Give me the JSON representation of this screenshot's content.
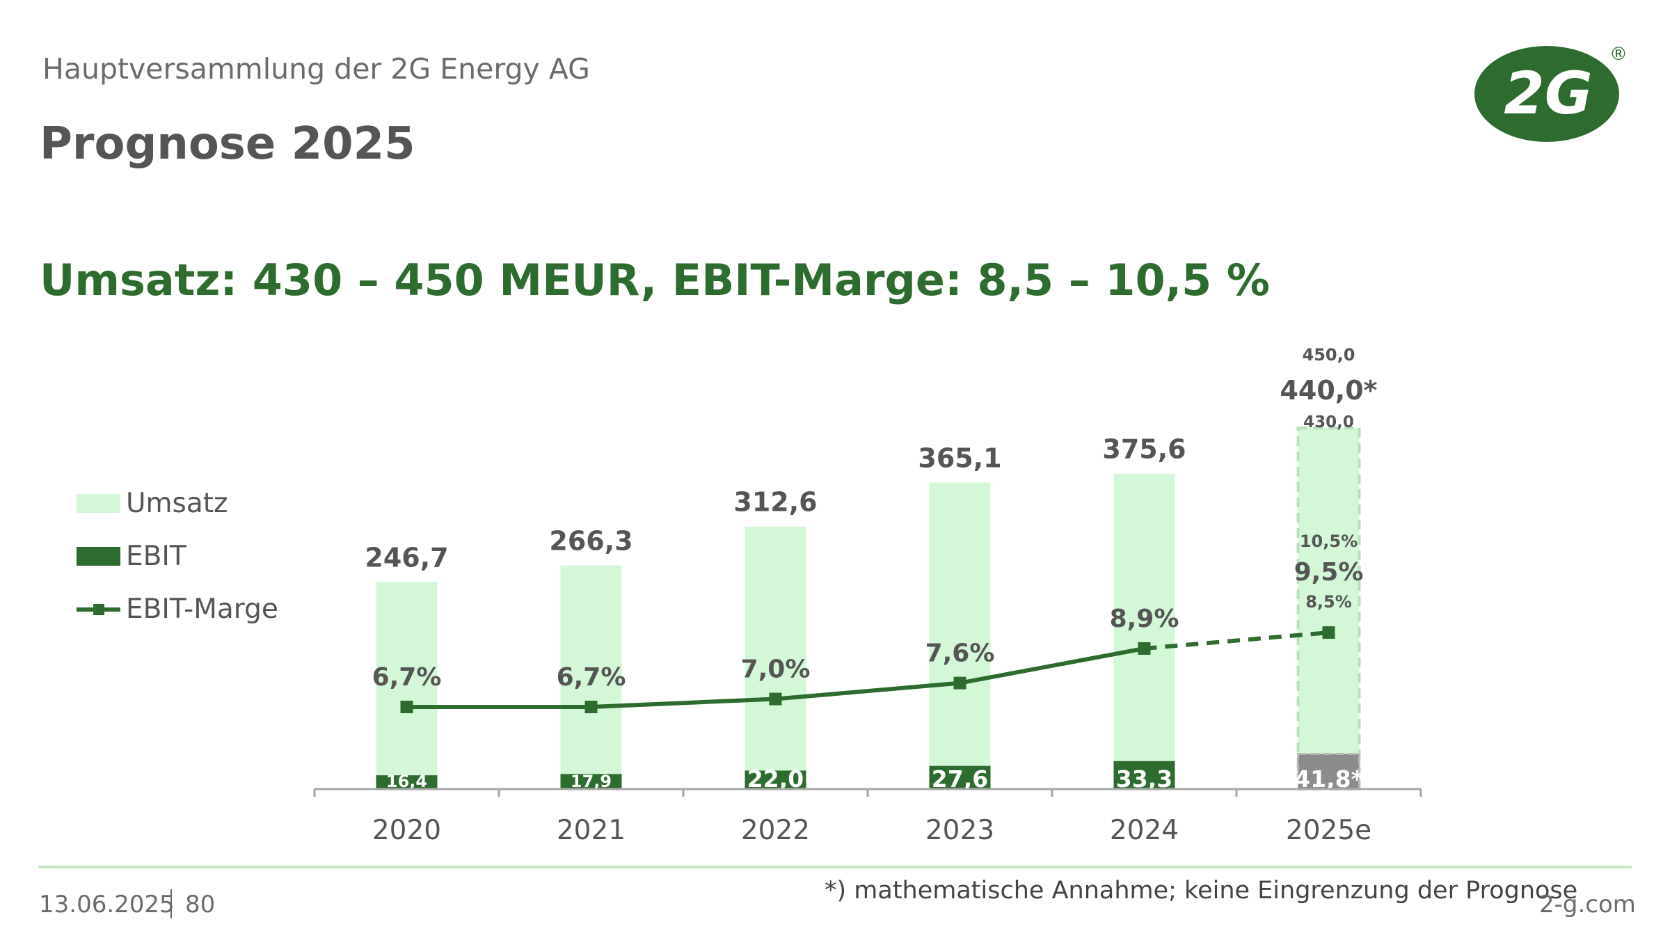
{
  "header": {
    "subtitle": "Hauptversammlung der 2G Energy AG",
    "title": "Prognose 2025",
    "headline": "Umsatz: 430 – 450 MEUR, EBIT-Marge: 8,5 – 10,5 %"
  },
  "logo": {
    "text": "2G",
    "registered": "®",
    "color": "#2e6b2e"
  },
  "legend": {
    "items": [
      {
        "label": "Umsatz",
        "color": "#d4f7d8"
      },
      {
        "label": "EBIT",
        "color": "#2e6b2e"
      },
      {
        "label": "EBIT-Marge",
        "color": "#2e6b2e"
      }
    ]
  },
  "chart_data": {
    "type": "bar",
    "categories": [
      "2020",
      "2021",
      "2022",
      "2023",
      "2024",
      "2025e"
    ],
    "series": [
      {
        "name": "Umsatz",
        "values": [
          246.7,
          266.3,
          312.6,
          365.1,
          375.6,
          440.0
        ],
        "labels": [
          "246,7",
          "266,3",
          "312,6",
          "365,1",
          "375,6",
          "440,0*"
        ],
        "color": "#d4f7d8"
      },
      {
        "name": "EBIT",
        "values": [
          16.4,
          17.9,
          22.0,
          27.6,
          33.3,
          41.8
        ],
        "labels": [
          "16,4",
          "17,9",
          "22,0",
          "27,6",
          "33,3",
          "41,8*"
        ],
        "color": "#2e6b2e"
      },
      {
        "name": "EBIT-Marge",
        "type": "line",
        "values": [
          6.7,
          6.7,
          7.0,
          7.6,
          8.9,
          9.5
        ],
        "labels": [
          "6,7%",
          "6,7%",
          "7,0%",
          "7,6%",
          "8,9%",
          "9,5%"
        ],
        "color": "#2e6b2e"
      }
    ],
    "forecast": {
      "category": "2025e",
      "umsatz_range": [
        430.0,
        450.0
      ],
      "umsatz_range_labels": [
        "430,0",
        "450,0"
      ],
      "marge_range": [
        8.5,
        10.5
      ],
      "marge_range_labels": [
        "8,5%",
        "10,5%"
      ],
      "ebit_color": "#8c8c8c"
    },
    "grid": false,
    "legend_position": "left"
  },
  "footer": {
    "date": "13.06.2025",
    "page": "80",
    "footnote": "*)  mathematische Annahme; keine Eingrenzung der Prognose",
    "url": "2-g.com"
  }
}
